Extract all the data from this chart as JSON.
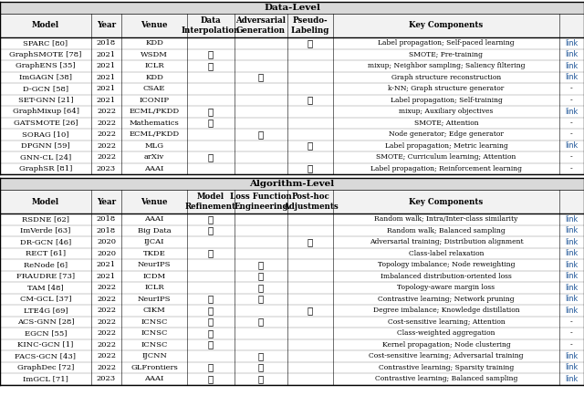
{
  "data_level_rows": [
    [
      "SPARC [80]",
      "2018",
      "KDD",
      "",
      "",
      "✓",
      "Label propagation; Self-paced learning",
      "link"
    ],
    [
      "GraphSMOTE [78]",
      "2021",
      "WSDM",
      "✓",
      "",
      "",
      "SMOTE; Pre-training",
      "link"
    ],
    [
      "GraphENS [35]",
      "2021",
      "ICLR",
      "✓",
      "",
      "",
      "mixup; Neighbor sampling; Saliency filtering",
      "link"
    ],
    [
      "ImGAGN [38]",
      "2021",
      "KDD",
      "",
      "✓",
      "",
      "Graph structure reconstruction",
      "link"
    ],
    [
      "D-GCN [58]",
      "2021",
      "CSAE",
      "",
      "",
      "",
      "k-NN; Graph structure generator",
      "-"
    ],
    [
      "SET-GNN [21]",
      "2021",
      "ICONIP",
      "",
      "",
      "✓",
      "Label propagation; Self-training",
      "-"
    ],
    [
      "GraphMixup [64]",
      "2022",
      "ECML/PKDD",
      "✓",
      "",
      "",
      "mixup; Auxiliary objectives",
      "link"
    ],
    [
      "GATSMOTE [26]",
      "2022",
      "Mathematics",
      "✓",
      "",
      "",
      "SMOTE; Attention",
      "-"
    ],
    [
      "SORAG [10]",
      "2022",
      "ECML/PKDD",
      "",
      "✓",
      "",
      "Node generator; Edge generator",
      "-"
    ],
    [
      "DPGNN [59]",
      "2022",
      "MLG",
      "",
      "",
      "✓",
      "Label propagation; Metric learning",
      "link"
    ],
    [
      "GNN-CL [24]",
      "2022",
      "arXiv",
      "✓",
      "",
      "",
      "SMOTE; Curriculum learning; Attention",
      "-"
    ],
    [
      "GraphSR [81]",
      "2023",
      "AAAI",
      "",
      "",
      "✓",
      "Label propagation; Reinforcement learning",
      "-"
    ]
  ],
  "algo_level_rows": [
    [
      "RSDNE [62]",
      "2018",
      "AAAI",
      "✓",
      "",
      "",
      "Random walk; Intra/Inter-class similarity",
      "link"
    ],
    [
      "ImVerde [63]",
      "2018",
      "Big Data",
      "✓",
      "",
      "",
      "Random walk; Balanced sampling",
      "link"
    ],
    [
      "DR-GCN [46]",
      "2020",
      "IJCAI",
      "",
      "",
      "✓",
      "Adversarial training; Distribution alignment",
      "link"
    ],
    [
      "RECT [61]",
      "2020",
      "TKDE",
      "✓",
      "",
      "",
      "Class-label relaxation",
      "link"
    ],
    [
      "ReNode [6]",
      "2021",
      "NeurIPS",
      "",
      "✓",
      "",
      "Topology imbalance; Node reweighting",
      "link"
    ],
    [
      "FRAUDRE [73]",
      "2021",
      "ICDM",
      "",
      "✓",
      "",
      "Imbalanced distribution-oriented loss",
      "link"
    ],
    [
      "TAM [48]",
      "2022",
      "ICLR",
      "",
      "✓",
      "",
      "Topology-aware margin loss",
      "link"
    ],
    [
      "CM-GCL [37]",
      "2022",
      "NeurIPS",
      "✓",
      "✓",
      "",
      "Contrastive learning; Network pruning",
      "link"
    ],
    [
      "LTE4G [69]",
      "2022",
      "CIKM",
      "✓",
      "",
      "✓",
      "Degree imbalance; Knowledge distillation",
      "link"
    ],
    [
      "ACS-GNN [28]",
      "2022",
      "ICNSC",
      "✓",
      "✓",
      "",
      "Cost-sensitive learning; Attention",
      "-"
    ],
    [
      "EGCN [55]",
      "2022",
      "ICNSC",
      "✓",
      "",
      "",
      "Class-weighted aggregation",
      "-"
    ],
    [
      "KINC-GCN [1]",
      "2022",
      "ICNSC",
      "✓",
      "",
      "",
      "Kernel propagation; Node clustering",
      "-"
    ],
    [
      "FACS-GCN [43]",
      "2022",
      "IJCNN",
      "",
      "✓",
      "",
      "Cost-sensitive learning; Adversarial training",
      "link"
    ],
    [
      "GraphDec [72]",
      "2022",
      "GLFrontiers",
      "✓",
      "✓",
      "",
      "Contrastive learning; Sparsity training",
      "link"
    ],
    [
      "ImGCL [71]",
      "2023",
      "AAAI",
      "✓",
      "✓",
      "",
      "Contrastive learning; Balanced sampling",
      "link"
    ]
  ],
  "data_col_headers": [
    "Model",
    "Year",
    "Venue",
    "Data\nInterpolation",
    "Adversarial\nGeneration",
    "Pseudo-\nLabeling",
    "Key Components",
    ""
  ],
  "algo_col_headers": [
    "Model",
    "Year",
    "Venue",
    "Model\nRefinement",
    "Loss Function\nEngineering",
    "Post-hoc\nAdjustments",
    "Key Components",
    ""
  ]
}
